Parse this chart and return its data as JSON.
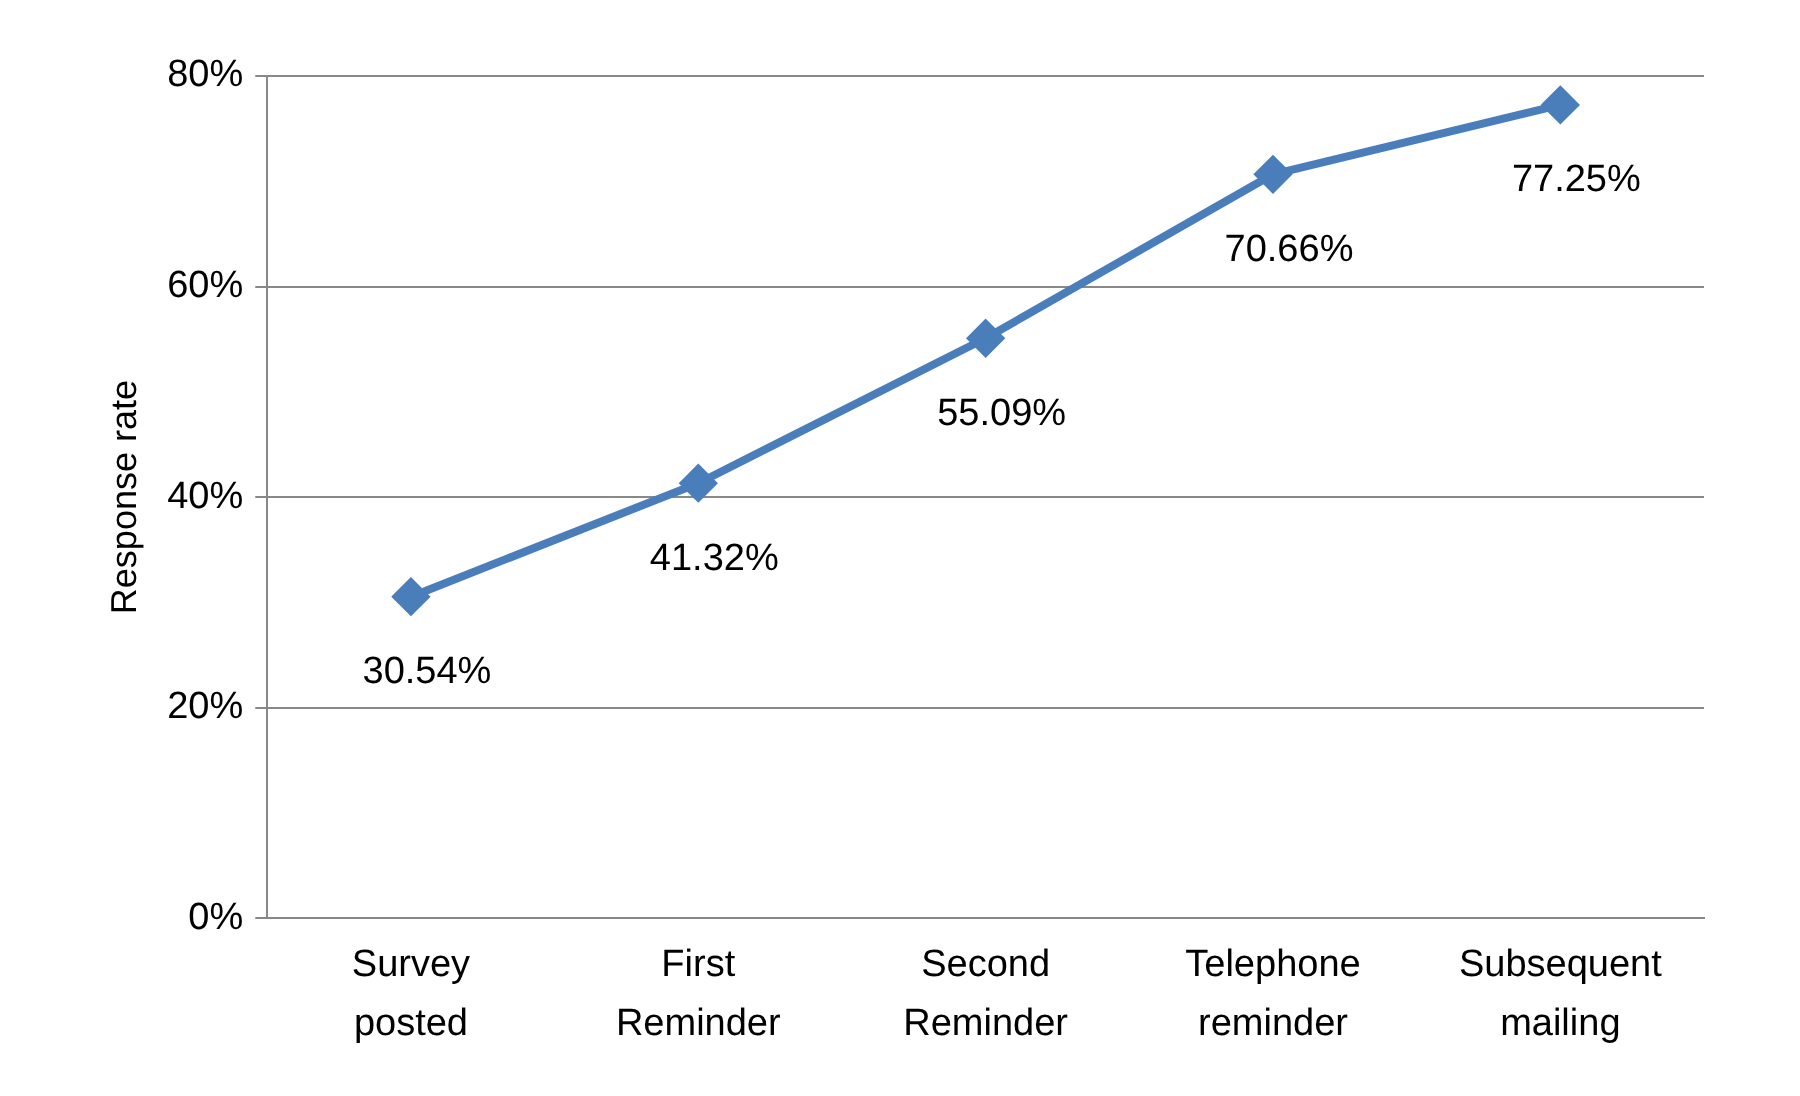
{
  "chart_data": {
    "type": "line",
    "ylabel": "Response rate",
    "categories": [
      "Survey posted",
      "First Reminder",
      "Second Reminder",
      "Telephone reminder",
      "Subsequent mailing"
    ],
    "series": [
      {
        "color": "#4a7ebb",
        "values": [
          30.54,
          41.32,
          55.09,
          70.66,
          77.25
        ],
        "value_labels": [
          "30.54%",
          "41.32%",
          "55.09%",
          "70.66%",
          "77.25%"
        ]
      }
    ],
    "ylim": [
      0,
      80
    ],
    "yticks": [
      {
        "value": 0,
        "label": "0%"
      },
      {
        "value": 20,
        "label": "20%"
      },
      {
        "value": 40,
        "label": "40%"
      },
      {
        "value": 60,
        "label": "60%"
      },
      {
        "value": 80,
        "label": "80%"
      }
    ],
    "grid": "y",
    "legend": false,
    "marker": "diamond",
    "line_style": "solid"
  }
}
